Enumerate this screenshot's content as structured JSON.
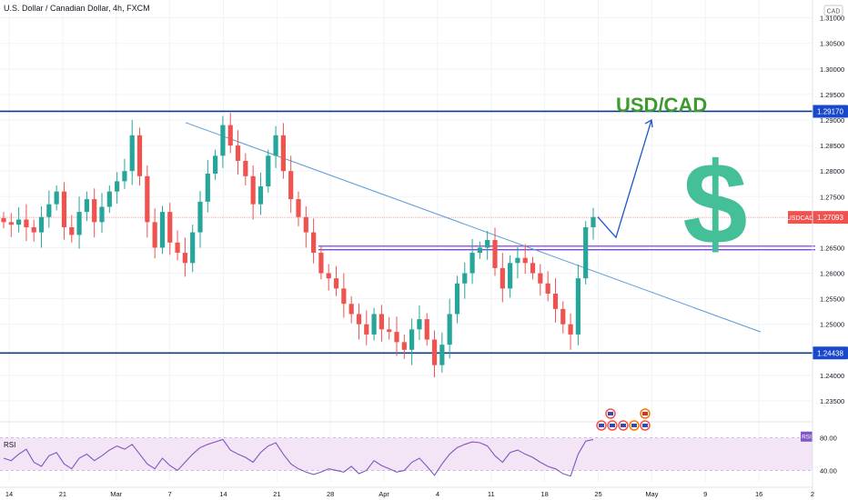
{
  "header": {
    "title": "U.S. Dollar / Canadian Dollar, 4h, FXCM",
    "currency_badge": "CAD"
  },
  "annotation": {
    "pair_text": "USD/CAD",
    "symbol_text": "$",
    "pair_color": "#3c9a2e",
    "symbol_color": "#45bf98"
  },
  "colors": {
    "up": "#26a69a",
    "down": "#ef5350",
    "level_line": "#0d3a8c",
    "range_line": "#7d49c9",
    "trend_line": "#5b9bd5",
    "rsi_line": "#7e57c2",
    "rsi_fill": "#f3e5f5",
    "price_line": "#f28b82"
  },
  "chart_data": [
    {
      "type": "line",
      "title": "U.S. Dollar / Canadian Dollar, 4h, FXCM",
      "xlabel": "",
      "ylabel": "",
      "x_ticks": [
        "14",
        "21",
        "Mar",
        "7",
        "14",
        "21",
        "28",
        "Apr",
        "4",
        "11",
        "18",
        "25",
        "May",
        "9",
        "16",
        "2"
      ],
      "y_ticks": [
        1.31,
        1.305,
        1.3,
        1.295,
        1.29,
        1.285,
        1.28,
        1.275,
        1.265,
        1.26,
        1.255,
        1.25,
        1.24,
        1.235
      ],
      "ylim": [
        1.2325,
        1.3135
      ],
      "series": [
        {
          "name": "USDCAD",
          "values": [
            1.27,
            1.2695,
            1.2705,
            1.269,
            1.268,
            1.271,
            1.2735,
            1.276,
            1.269,
            1.2675,
            1.272,
            1.2745,
            1.27,
            1.273,
            1.276,
            1.278,
            1.28,
            1.287,
            1.279,
            1.27,
            1.265,
            1.272,
            1.266,
            1.264,
            1.262,
            1.268,
            1.274,
            1.2795,
            1.283,
            1.289,
            1.285,
            1.282,
            1.279,
            1.2735,
            1.277,
            1.283,
            1.287,
            1.28,
            1.2745,
            1.271,
            1.268,
            1.264,
            1.26,
            1.259,
            1.257,
            1.254,
            1.252,
            1.25,
            1.248,
            1.252,
            1.249,
            1.2485,
            1.2465,
            1.245,
            1.249,
            1.251,
            1.247,
            1.242,
            1.246,
            1.252,
            1.258,
            1.26,
            1.264,
            1.265,
            1.2665,
            1.261,
            1.257,
            1.262,
            1.263,
            1.262,
            1.26,
            1.258,
            1.256,
            1.253,
            1.25,
            1.248,
            1.259,
            1.269,
            1.271
          ]
        }
      ],
      "current_price_label": "USDCAD",
      "current_price": "1.27093",
      "levels": [
        {
          "label": "1.29170",
          "value": 1.2917
        },
        {
          "label": "1.24438",
          "value": 1.24438
        }
      ],
      "range_zone": [
        1.2646,
        1.2653
      ],
      "trendline": {
        "from": 1.2895,
        "to": 1.2485
      },
      "projection": [
        1.271,
        1.267,
        1.29
      ],
      "grid": true,
      "legend": "none"
    },
    {
      "type": "line",
      "title": "RSI",
      "y_ticks": [
        80.0,
        40.0
      ],
      "y_tick_labels": [
        "80.00",
        "40.00"
      ],
      "ylim": [
        26,
        93
      ],
      "badge": "RSI",
      "series": [
        {
          "name": "RSI",
          "values": [
            55,
            52,
            60,
            66,
            50,
            45,
            58,
            62,
            48,
            42,
            55,
            60,
            52,
            58,
            65,
            70,
            66,
            72,
            60,
            48,
            42,
            55,
            46,
            40,
            50,
            60,
            68,
            72,
            75,
            78,
            65,
            60,
            56,
            50,
            62,
            70,
            74,
            60,
            48,
            42,
            38,
            35,
            38,
            42,
            40,
            38,
            45,
            36,
            40,
            52,
            46,
            42,
            38,
            40,
            50,
            55,
            45,
            34,
            48,
            60,
            68,
            72,
            75,
            74,
            70,
            58,
            50,
            62,
            65,
            60,
            56,
            50,
            45,
            42,
            36,
            33,
            60,
            76,
            78
          ]
        }
      ]
    }
  ]
}
